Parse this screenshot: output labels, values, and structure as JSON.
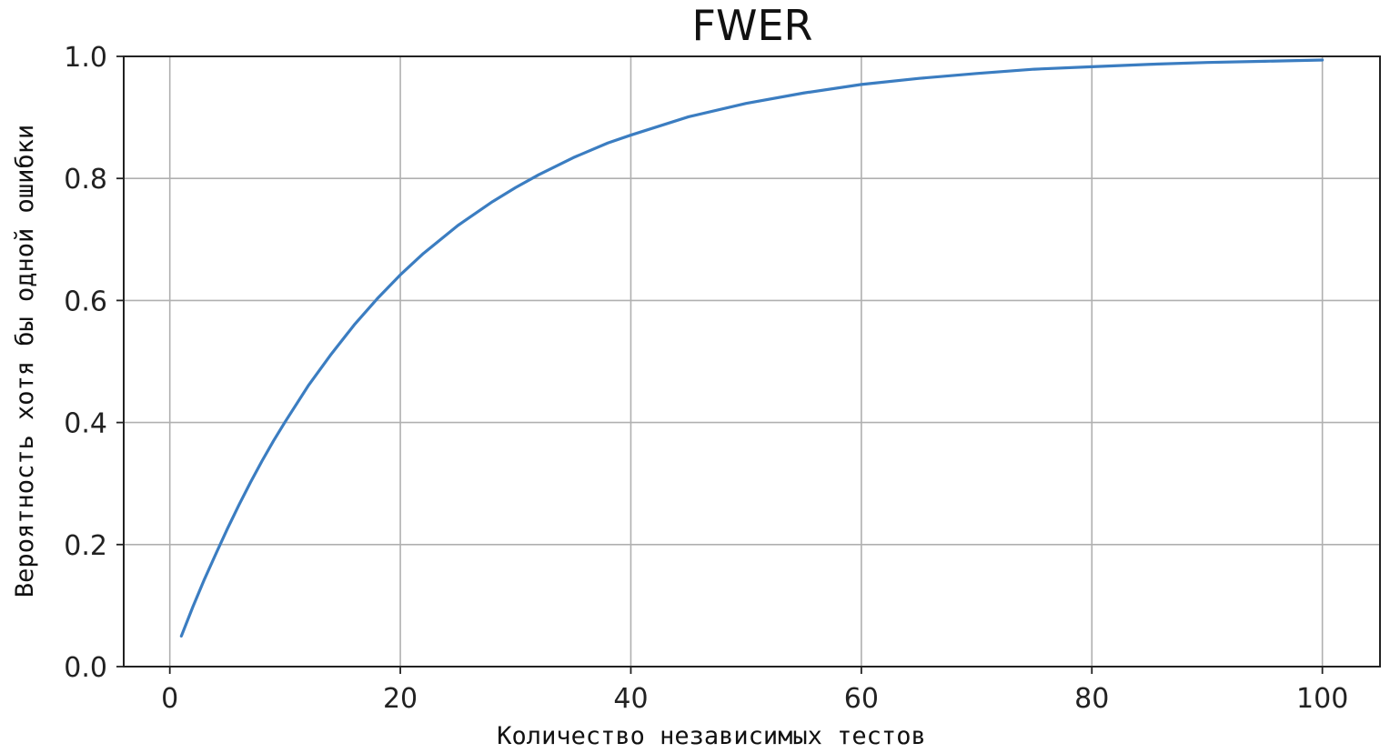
{
  "chart_data": {
    "type": "line",
    "title": "FWER",
    "xlabel": "Количество независимых тестов",
    "ylabel": "Вероятность хотя бы одной ошибки",
    "xlim": [
      -4,
      105
    ],
    "ylim": [
      0,
      1
    ],
    "xticks": [
      0,
      20,
      40,
      60,
      80,
      100
    ],
    "xtick_labels": [
      "0",
      "20",
      "40",
      "60",
      "80",
      "100"
    ],
    "yticks": [
      0,
      0.2,
      0.4,
      0.6,
      0.8,
      1.0
    ],
    "ytick_labels": [
      "0.0",
      "0.2",
      "0.4",
      "0.6",
      "0.8",
      "1.0"
    ],
    "grid": true,
    "legend": "none",
    "series": [
      {
        "color": "#3b7dc1",
        "x": [
          1,
          2,
          3,
          4,
          5,
          6,
          7,
          8,
          9,
          10,
          12,
          14,
          16,
          18,
          20,
          22,
          25,
          28,
          30,
          32,
          35,
          38,
          40,
          45,
          50,
          55,
          60,
          65,
          70,
          75,
          80,
          85,
          90,
          95,
          100
        ],
        "y": [
          0.05,
          0.098,
          0.143,
          0.185,
          0.226,
          0.265,
          0.302,
          0.337,
          0.37,
          0.401,
          0.46,
          0.512,
          0.56,
          0.603,
          0.642,
          0.677,
          0.723,
          0.762,
          0.785,
          0.806,
          0.834,
          0.858,
          0.871,
          0.901,
          0.923,
          0.94,
          0.954,
          0.964,
          0.972,
          0.979,
          0.983,
          0.987,
          0.99,
          0.992,
          0.994
        ]
      }
    ]
  }
}
